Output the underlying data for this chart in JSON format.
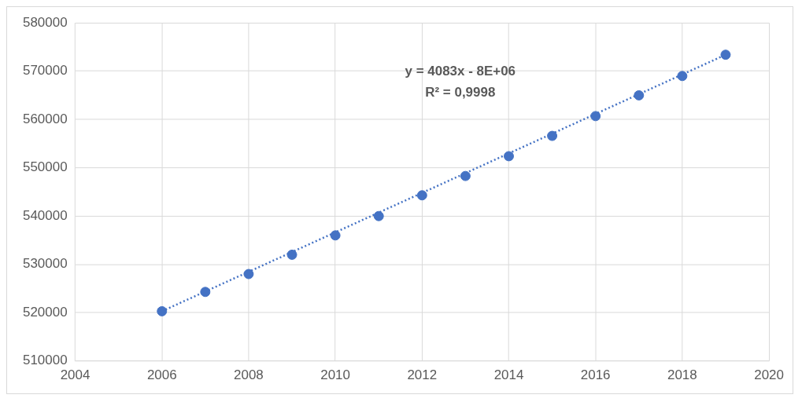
{
  "chart_data": {
    "type": "scatter",
    "x": [
      2006,
      2007,
      2008,
      2009,
      2010,
      2011,
      2012,
      2013,
      2014,
      2015,
      2016,
      2017,
      2018,
      2019
    ],
    "series": [
      {
        "color": "#4472c4",
        "marker": "circle",
        "values": [
          520300,
          524300,
          528000,
          532000,
          536000,
          540000,
          544300,
          548300,
          552400,
          556600,
          560700,
          565000,
          569000,
          573400
        ]
      },
      {
        "type": "line",
        "color": "#4472c4",
        "line_style": "dotted",
        "marker": "none",
        "x": [
          2006,
          2019
        ],
        "values": [
          520300,
          573400
        ]
      }
    ],
    "xlim": [
      2004,
      2020
    ],
    "xticks": [
      2004,
      2006,
      2008,
      2010,
      2012,
      2014,
      2016,
      2018,
      2020
    ],
    "ylim": [
      510000,
      580000
    ],
    "yticks": [
      510000,
      520000,
      530000,
      540000,
      550000,
      560000,
      570000,
      580000
    ],
    "grid": true,
    "legend": false,
    "annotations": [
      "y = 4083x - 8E+06",
      "R² = 0,9998"
    ]
  }
}
